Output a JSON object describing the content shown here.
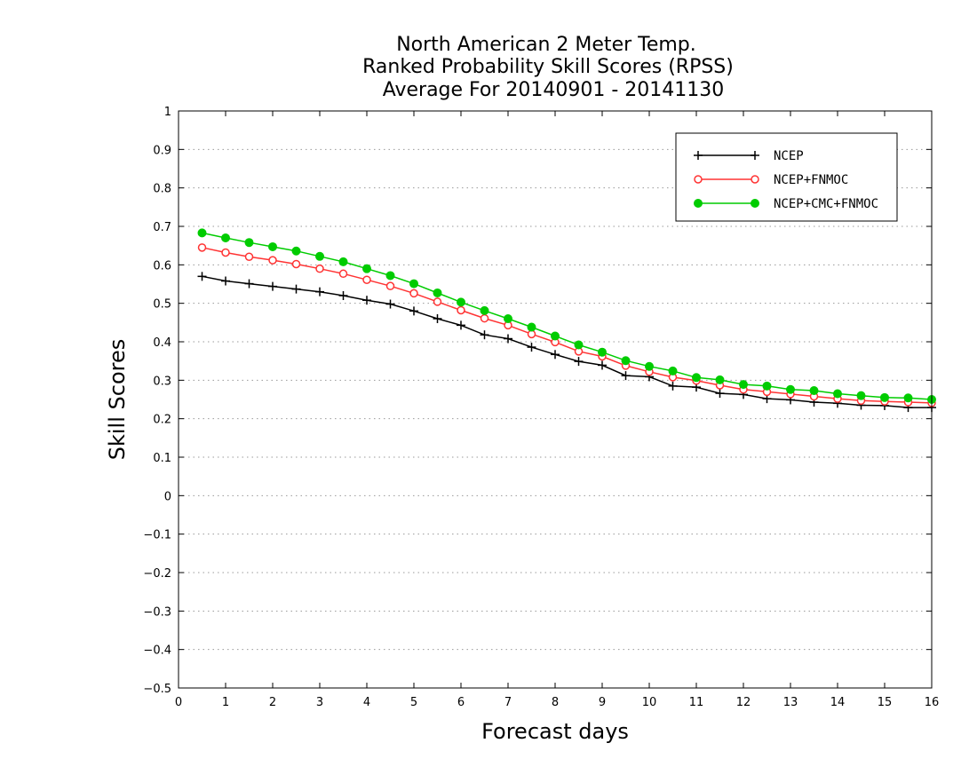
{
  "chart_data": {
    "type": "line",
    "title": [
      "North American 2 Meter Temp.",
      "Ranked Probability Skill Scores (RPSS)",
      "Average For 20140901 - 20141130"
    ],
    "xlabel": "Forecast days",
    "ylabel": "Skill Scores",
    "xlim": [
      0,
      16
    ],
    "ylim": [
      -0.5,
      1
    ],
    "xticks": [
      "0",
      "1",
      "2",
      "3",
      "4",
      "5",
      "6",
      "7",
      "8",
      "9",
      "10",
      "11",
      "12",
      "13",
      "14",
      "15",
      "16"
    ],
    "yticks": [
      "−0.5",
      "−0.4",
      "−0.3",
      "−0.2",
      "−0.1",
      "0",
      "0.1",
      "0.2",
      "0.3",
      "0.4",
      "0.5",
      "0.6",
      "0.7",
      "0.8",
      "0.9",
      "1"
    ],
    "grid": true,
    "legend": "top-right",
    "x": [
      0.5,
      1,
      1.5,
      2,
      2.5,
      3,
      3.5,
      4,
      4.5,
      5,
      5.5,
      6,
      6.5,
      7,
      7.5,
      8,
      8.5,
      9,
      9.5,
      10,
      10.5,
      11,
      11.5,
      12,
      12.5,
      13,
      13.5,
      14,
      14.5,
      15,
      15.5,
      16
    ],
    "series": [
      {
        "name": "NCEP",
        "color": "#000000",
        "marker": "plus",
        "values": [
          0.57,
          0.558,
          0.551,
          0.544,
          0.537,
          0.53,
          0.52,
          0.508,
          0.498,
          0.48,
          0.46,
          0.443,
          0.418,
          0.408,
          0.386,
          0.367,
          0.349,
          0.339,
          0.312,
          0.309,
          0.285,
          0.282,
          0.266,
          0.263,
          0.252,
          0.249,
          0.243,
          0.24,
          0.235,
          0.234,
          0.229,
          0.229
        ]
      },
      {
        "name": "NCEP+FNMOC",
        "color": "#ff3333",
        "marker": "open-circle",
        "values": [
          0.645,
          0.632,
          0.621,
          0.612,
          0.602,
          0.59,
          0.577,
          0.561,
          0.545,
          0.526,
          0.504,
          0.482,
          0.461,
          0.443,
          0.42,
          0.399,
          0.375,
          0.362,
          0.338,
          0.322,
          0.308,
          0.299,
          0.287,
          0.276,
          0.27,
          0.264,
          0.258,
          0.252,
          0.247,
          0.245,
          0.243,
          0.241
        ]
      },
      {
        "name": "NCEP+CMC+FNMOC",
        "color": "#00cc00",
        "marker": "filled-circle",
        "values": [
          0.683,
          0.67,
          0.658,
          0.647,
          0.636,
          0.622,
          0.608,
          0.59,
          0.572,
          0.551,
          0.527,
          0.503,
          0.481,
          0.46,
          0.438,
          0.415,
          0.392,
          0.373,
          0.351,
          0.336,
          0.324,
          0.307,
          0.301,
          0.289,
          0.285,
          0.276,
          0.273,
          0.265,
          0.26,
          0.255,
          0.254,
          0.25
        ]
      }
    ]
  }
}
